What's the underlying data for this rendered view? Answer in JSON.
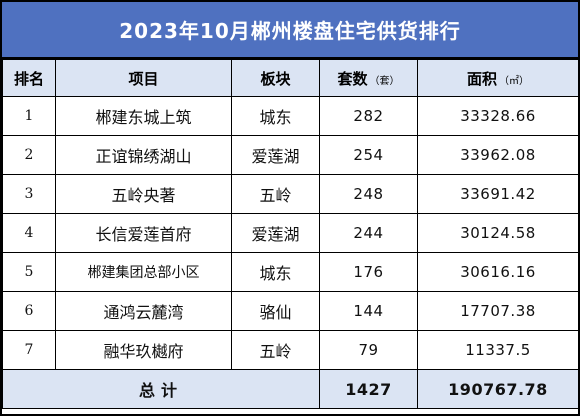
{
  "title": "2023年10月郴州楼盘住宅供货排行",
  "headers": {
    "rank": "排名",
    "project": "项目",
    "district": "板块",
    "units": "套数",
    "units_unit": "（套）",
    "area": "面积",
    "area_unit": "（㎡）"
  },
  "rows": [
    {
      "rank": "1",
      "project": "郴建东城上筑",
      "district": "城东",
      "units": "282",
      "area": "33328.66"
    },
    {
      "rank": "2",
      "project": "正谊锦绣湖山",
      "district": "爱莲湖",
      "units": "254",
      "area": "33962.08"
    },
    {
      "rank": "3",
      "project": "五岭央著",
      "district": "五岭",
      "units": "248",
      "area": "33691.42"
    },
    {
      "rank": "4",
      "project": "长信爱莲首府",
      "district": "爱莲湖",
      "units": "244",
      "area": "30124.58"
    },
    {
      "rank": "5",
      "project": "郴建集团总部小区",
      "district": "城东",
      "units": "176",
      "area": "30616.16"
    },
    {
      "rank": "6",
      "project": "通鸿云麓湾",
      "district": "骆仙",
      "units": "144",
      "area": "17707.38"
    },
    {
      "rank": "7",
      "project": "融华玖樾府",
      "district": "五岭",
      "units": "79",
      "area": "11337.5"
    }
  ],
  "total": {
    "label": "总计",
    "units": "1427",
    "area": "190767.78"
  }
}
